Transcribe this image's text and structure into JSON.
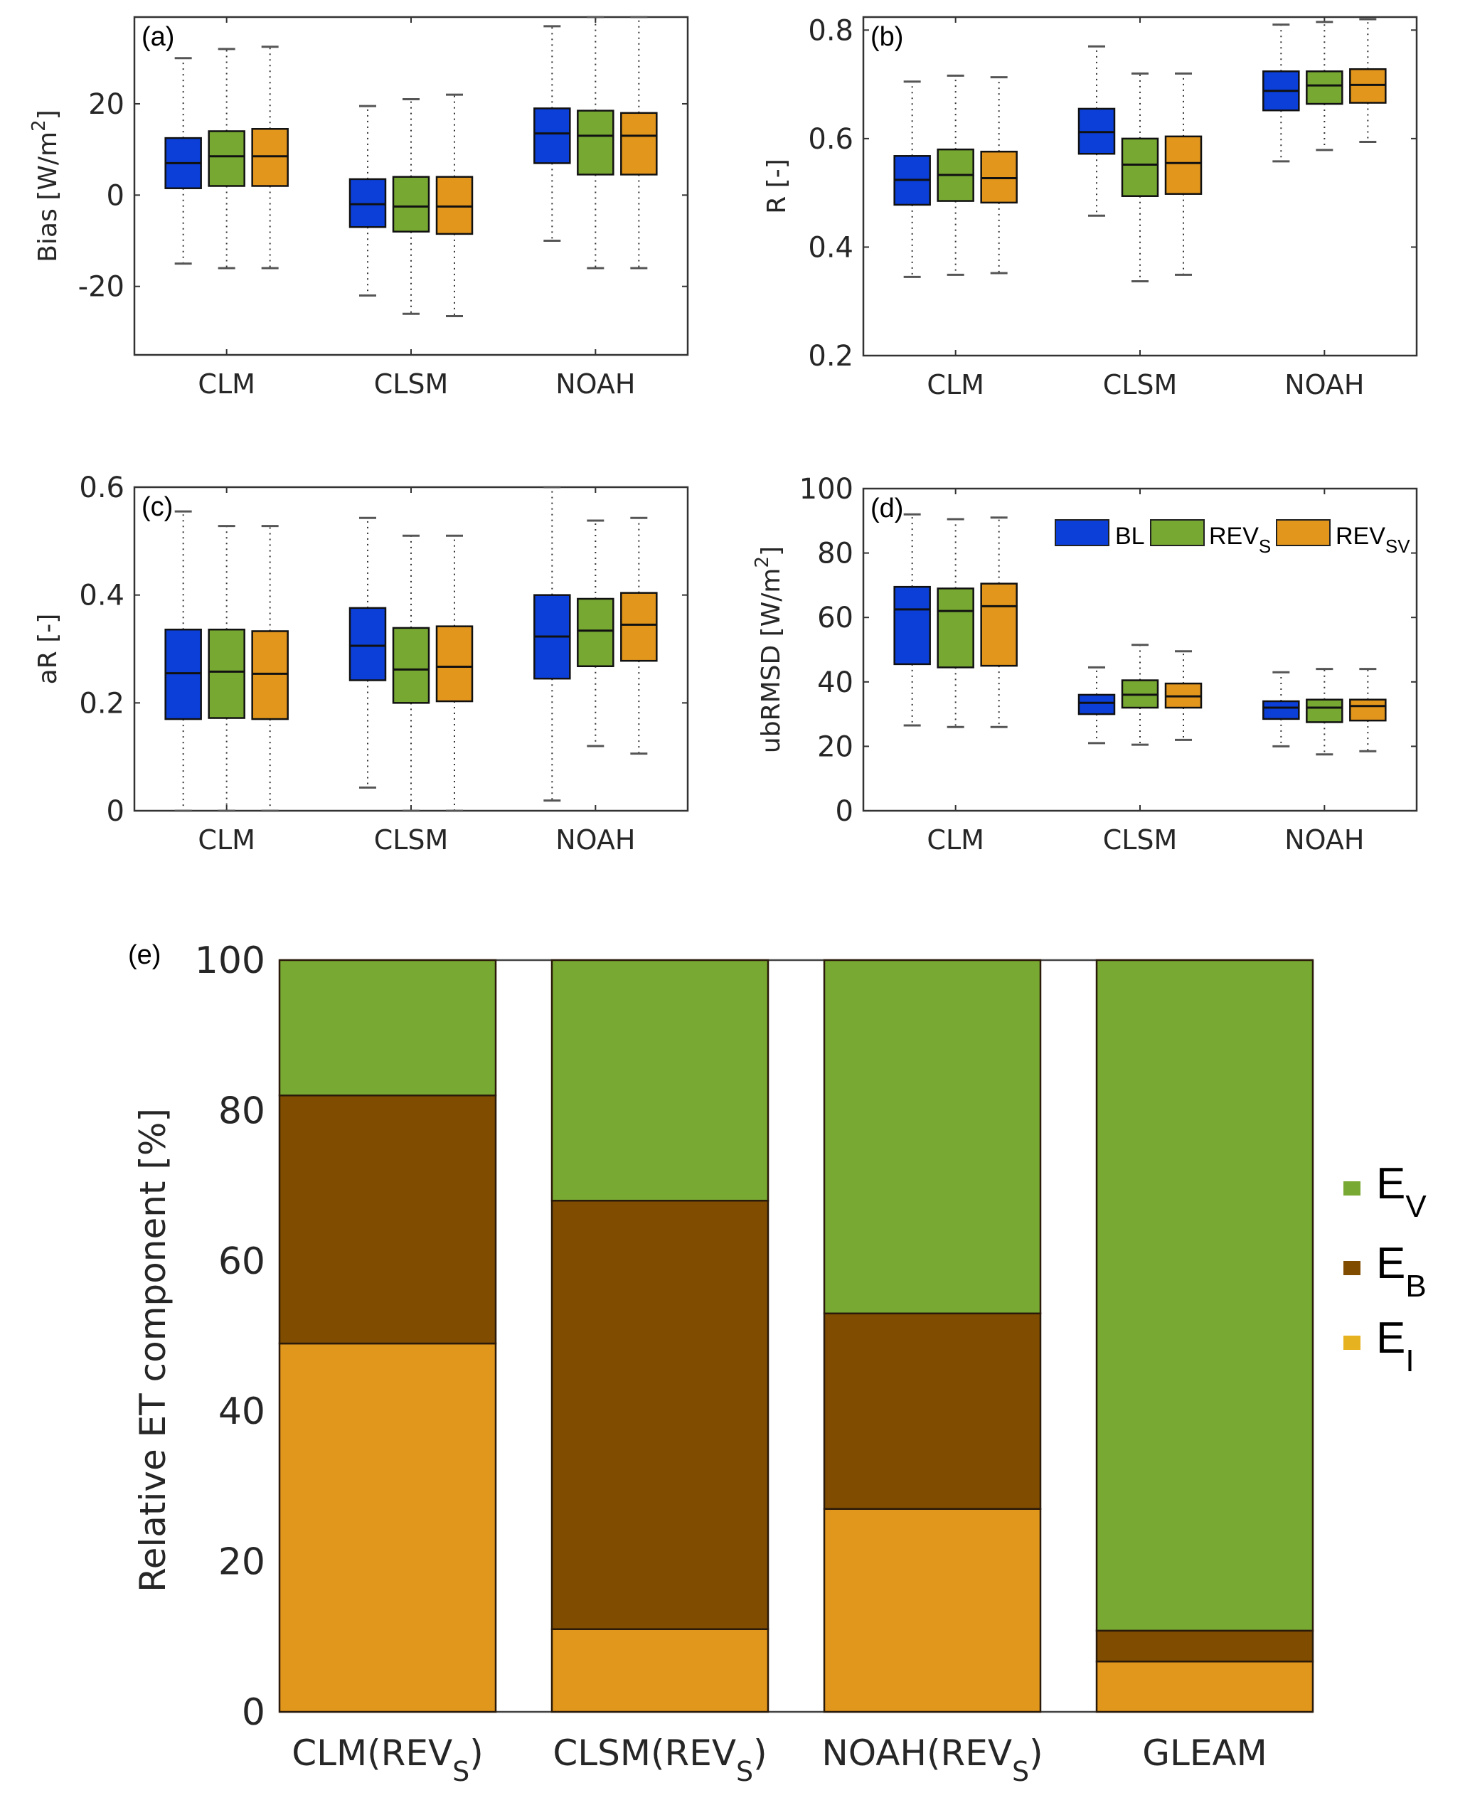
{
  "colors": {
    "BL": "#0b3fd8",
    "REV_S": "#77a832",
    "REV_SV": "#e3961c",
    "E_V": "#78a932",
    "E_B": "#7f4c00",
    "E_I": "#e1961c",
    "legend_E_I": "#e6b21f"
  },
  "chart_data": [
    {
      "id": "a",
      "type": "box",
      "panel_label": "(a)",
      "ylabel": "Bias [W/m",
      "ylabel_sup": "2",
      "ylabel_end": "]",
      "ylim": [
        -35,
        39
      ],
      "yticks": [
        -20,
        0,
        20
      ],
      "ytick_labels": [
        "-20",
        "0",
        "20"
      ],
      "categories": [
        "CLM",
        "CLSM",
        "NOAH"
      ],
      "series_names": [
        "BL",
        "REV_S",
        "REV_SV"
      ],
      "boxes": [
        [
          [
            -15,
            1.5,
            7,
            12.5,
            30
          ],
          [
            -16,
            2,
            8.5,
            14,
            32
          ],
          [
            -16,
            2,
            8.5,
            14.5,
            32.5
          ]
        ],
        [
          [
            -22,
            -7,
            -2,
            3.5,
            19.5
          ],
          [
            -26,
            -8,
            -2.5,
            4,
            21
          ],
          [
            -26.5,
            -8.5,
            -2.5,
            4,
            22
          ]
        ],
        [
          [
            -10,
            7,
            13.5,
            19,
            37
          ],
          [
            -16,
            4.5,
            13,
            18.5,
            39
          ],
          [
            -16,
            4.5,
            13,
            18,
            39
          ]
        ]
      ]
    },
    {
      "id": "b",
      "type": "box",
      "panel_label": "(b)",
      "ylabel": "R [-]",
      "ylim": [
        0.2,
        0.824
      ],
      "yticks": [
        0.2,
        0.4,
        0.6,
        0.8
      ],
      "ytick_labels": [
        "0.2",
        "0.4",
        "0.6",
        "0.8"
      ],
      "categories": [
        "CLM",
        "CLSM",
        "NOAH"
      ],
      "series_names": [
        "BL",
        "REV_S",
        "REV_SV"
      ],
      "boxes": [
        [
          [
            0.345,
            0.478,
            0.524,
            0.568,
            0.705
          ],
          [
            0.349,
            0.485,
            0.533,
            0.58,
            0.716
          ],
          [
            0.352,
            0.482,
            0.527,
            0.576,
            0.713
          ]
        ],
        [
          [
            0.458,
            0.572,
            0.612,
            0.655,
            0.77
          ],
          [
            0.337,
            0.494,
            0.552,
            0.6,
            0.72
          ],
          [
            0.349,
            0.498,
            0.555,
            0.604,
            0.72
          ]
        ],
        [
          [
            0.558,
            0.652,
            0.688,
            0.724,
            0.81
          ],
          [
            0.579,
            0.664,
            0.698,
            0.724,
            0.815
          ],
          [
            0.594,
            0.666,
            0.699,
            0.728,
            0.82
          ]
        ]
      ]
    },
    {
      "id": "c",
      "type": "box",
      "panel_label": "(c)",
      "ylabel": "aR [-]",
      "ylim": [
        0,
        0.6
      ],
      "yticks": [
        0,
        0.2,
        0.4,
        0.6
      ],
      "ytick_labels": [
        "0",
        "0.2",
        "0.4",
        "0.6"
      ],
      "categories": [
        "CLM",
        "CLSM",
        "NOAH"
      ],
      "series_names": [
        "BL",
        "REV_S",
        "REV_SV"
      ],
      "boxes": [
        [
          [
            0,
            0.17,
            0.255,
            0.336,
            0.555
          ],
          [
            0,
            0.172,
            0.258,
            0.336,
            0.528
          ],
          [
            0,
            0.17,
            0.254,
            0.333,
            0.528
          ]
        ],
        [
          [
            0.043,
            0.242,
            0.306,
            0.376,
            0.543
          ],
          [
            0,
            0.2,
            0.262,
            0.339,
            0.51
          ],
          [
            0,
            0.203,
            0.267,
            0.342,
            0.51
          ]
        ],
        [
          [
            0.019,
            0.245,
            0.323,
            0.4,
            0.6
          ],
          [
            0.12,
            0.268,
            0.334,
            0.393,
            0.538
          ],
          [
            0.106,
            0.278,
            0.345,
            0.404,
            0.543
          ]
        ]
      ]
    },
    {
      "id": "d",
      "type": "box",
      "panel_label": "(d)",
      "ylabel": "ubRMSD [W/m",
      "ylabel_sup": "2",
      "ylabel_end": "]",
      "ylim": [
        0,
        100
      ],
      "yticks": [
        0,
        20,
        40,
        60,
        80,
        100
      ],
      "ytick_labels": [
        "0",
        "20",
        "40",
        "60",
        "80",
        "100"
      ],
      "categories": [
        "CLM",
        "CLSM",
        "NOAH"
      ],
      "series_names": [
        "BL",
        "REV_S",
        "REV_SV"
      ],
      "legend": {
        "placement": "top-right",
        "entries": [
          {
            "key": "BL",
            "text": "BL",
            "sub": ""
          },
          {
            "key": "REV_S",
            "text": "REV",
            "sub": "S"
          },
          {
            "key": "REV_SV",
            "text": "REV",
            "sub": "SV"
          }
        ]
      },
      "boxes": [
        [
          [
            26.5,
            45.5,
            62.5,
            69.5,
            92
          ],
          [
            26,
            44.5,
            62,
            69,
            90.5
          ],
          [
            26,
            45,
            63.5,
            70.5,
            91
          ]
        ],
        [
          [
            21,
            30,
            33.5,
            36,
            44.5
          ],
          [
            20.5,
            32,
            36,
            40.5,
            51.5
          ],
          [
            22,
            32,
            35.5,
            39.5,
            49.5
          ]
        ],
        [
          [
            20,
            28.5,
            32,
            34,
            43
          ],
          [
            17.5,
            27.5,
            32,
            34.5,
            44
          ],
          [
            18.5,
            28,
            32.5,
            34.5,
            44
          ]
        ]
      ]
    },
    {
      "id": "e",
      "type": "bar",
      "stacked": true,
      "panel_label": "(e)",
      "ylabel": "Relative ET component [%]",
      "ylim": [
        0,
        100
      ],
      "yticks": [
        0,
        20,
        40,
        60,
        80,
        100
      ],
      "ytick_labels": [
        "0",
        "20",
        "40",
        "60",
        "80",
        "100"
      ],
      "categories": [
        {
          "text": "CLM(REV",
          "sub": "S",
          "end": ")"
        },
        {
          "text": "CLSM(REV",
          "sub": "S",
          "end": ")"
        },
        {
          "text": "NOAH(REV",
          "sub": "S",
          "end": ")"
        },
        {
          "text": "GLEAM",
          "sub": "",
          "end": ""
        }
      ],
      "series": [
        {
          "name": "E_I",
          "label": "E",
          "sub": "I",
          "values": [
            49,
            11,
            27,
            6.7
          ]
        },
        {
          "name": "E_B",
          "label": "E",
          "sub": "B",
          "values": [
            33,
            57,
            26,
            4.1
          ]
        },
        {
          "name": "E_V",
          "label": "E",
          "sub": "V",
          "values": [
            18,
            32,
            47,
            89.2
          ]
        }
      ],
      "legend": {
        "placement": "right",
        "order": [
          "E_V",
          "E_B",
          "E_I"
        ]
      }
    }
  ]
}
